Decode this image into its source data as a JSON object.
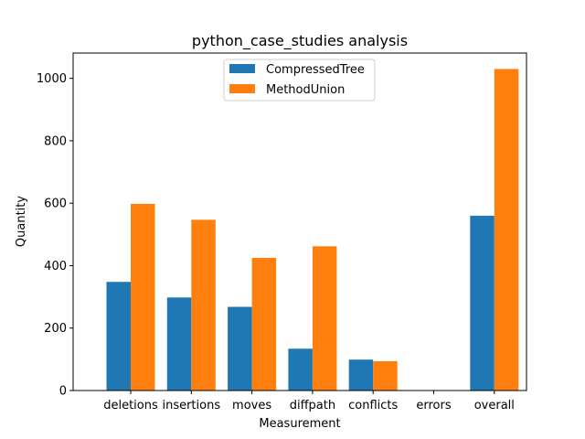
{
  "chart_data": {
    "type": "bar",
    "title": "python_case_studies analysis",
    "xlabel": "Measurement",
    "ylabel": "Quantity",
    "categories": [
      "deletions",
      "insertions",
      "moves",
      "diffpath",
      "conflicts",
      "errors",
      "overall"
    ],
    "series": [
      {
        "name": "CompressedTree",
        "color": "#1f77b4",
        "values": [
          348,
          298,
          268,
          134,
          99,
          0,
          560
        ]
      },
      {
        "name": "MethodUnion",
        "color": "#ff7f0e",
        "values": [
          598,
          547,
          425,
          462,
          94,
          0,
          1030
        ]
      }
    ],
    "ylim": [
      0,
      1081
    ],
    "yticks": [
      0,
      200,
      400,
      600,
      800,
      1000
    ],
    "grid": false,
    "legend_position": "top-center"
  }
}
